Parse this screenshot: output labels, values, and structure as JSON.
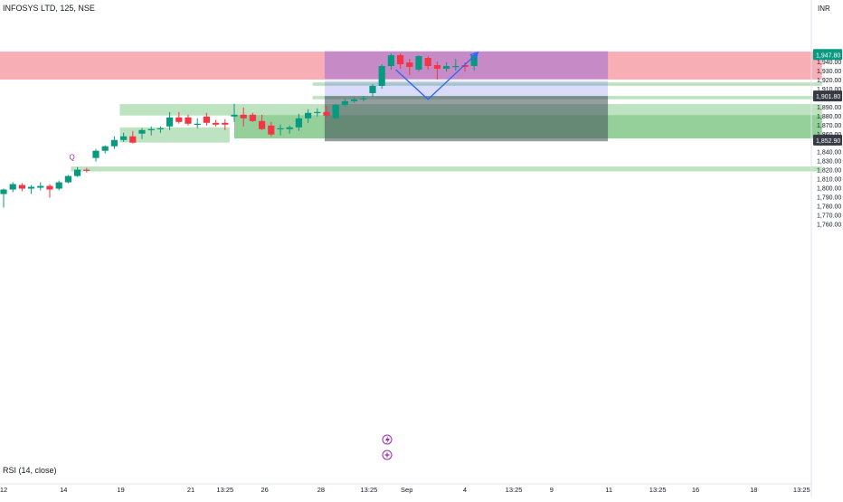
{
  "header": {
    "symbol": "INFOSYS LTD, 125, NSE",
    "currency": "INR"
  },
  "indicator": {
    "label": "RSI (14, close)"
  },
  "colors": {
    "up": "#089981",
    "down": "#f23645",
    "supply": "#f7a5ad",
    "demand": "#b9e1be",
    "demand_dark": "#8fce96",
    "target": "#5a5af0",
    "arrow": "#2962ff"
  },
  "icons": [
    "lightning-icon",
    "plus-circle-icon"
  ],
  "chart_data": {
    "type": "candlestick",
    "title": "INFOSYS LTD, 125, NSE",
    "ylim": [
      1756,
      1973
    ],
    "price_ticks": [
      1760,
      1770,
      1780,
      1790,
      1800,
      1810,
      1820,
      1830,
      1840,
      1850,
      1860,
      1870,
      1880,
      1890,
      1900,
      1910,
      1920,
      1930,
      1940
    ],
    "price_tick_labels": [
      "1,760.00",
      "1,770.00",
      "1,780.00",
      "1,790.00",
      "1,800.00",
      "1,810.00",
      "1,820.00",
      "1,830.00",
      "1,840.00",
      "1,850.00",
      "1,860.00",
      "1,870.00",
      "1,880.00",
      "1,890.00",
      "1,900.00",
      "1,910.00",
      "1,920.00",
      "1,930.00",
      "1,940.00"
    ],
    "x_tick_labels": [
      {
        "label": "12",
        "bar": 0
      },
      {
        "label": "14",
        "bar": 6.5
      },
      {
        "label": "19",
        "bar": 12.7
      },
      {
        "label": "21",
        "bar": 20.3
      },
      {
        "label": "13:25",
        "bar": 24
      },
      {
        "label": "26",
        "bar": 28.3
      },
      {
        "label": "28",
        "bar": 34.4
      },
      {
        "label": "13:25",
        "bar": 39.6
      },
      {
        "label": "Sep",
        "bar": 43.7
      },
      {
        "label": "4",
        "bar": 50
      },
      {
        "label": "13:25",
        "bar": 55.3
      },
      {
        "label": "9",
        "bar": 59.4
      },
      {
        "label": "11",
        "bar": 65.6
      },
      {
        "label": "13:25",
        "bar": 70.9
      },
      {
        "label": "16",
        "bar": 75
      },
      {
        "label": "18",
        "bar": 81.3
      },
      {
        "label": "13:25",
        "bar": 86.5
      }
    ],
    "price_badges": [
      {
        "price": 1947.8,
        "label": "1,947.80",
        "color": "#089981"
      },
      {
        "price": 1901.8,
        "label": "1,901.80",
        "color": "#363a45"
      },
      {
        "price": 1852.9,
        "label": "1,852.90",
        "color": "#363a45"
      }
    ],
    "candles": [
      {
        "o": 1793,
        "h": 1799,
        "l": 1778,
        "c": 1798
      },
      {
        "o": 1798,
        "h": 1806,
        "l": 1795,
        "c": 1804
      },
      {
        "o": 1803,
        "h": 1805,
        "l": 1796,
        "c": 1799
      },
      {
        "o": 1799,
        "h": 1803,
        "l": 1793,
        "c": 1801
      },
      {
        "o": 1800,
        "h": 1806,
        "l": 1797,
        "c": 1802
      },
      {
        "o": 1802,
        "h": 1804,
        "l": 1789,
        "c": 1798
      },
      {
        "o": 1799,
        "h": 1808,
        "l": 1797,
        "c": 1806
      },
      {
        "o": 1806,
        "h": 1814,
        "l": 1805,
        "c": 1813
      },
      {
        "o": 1813,
        "h": 1823,
        "l": 1812,
        "c": 1820
      },
      {
        "o": 1820,
        "h": 1822,
        "l": 1817,
        "c": 1819
      },
      {
        "o": 1833,
        "h": 1843,
        "l": 1829,
        "c": 1841
      },
      {
        "o": 1841,
        "h": 1847,
        "l": 1838,
        "c": 1846
      },
      {
        "o": 1846,
        "h": 1857,
        "l": 1843,
        "c": 1853
      },
      {
        "o": 1853,
        "h": 1861,
        "l": 1851,
        "c": 1857
      },
      {
        "o": 1857,
        "h": 1863,
        "l": 1849,
        "c": 1850
      },
      {
        "o": 1860,
        "h": 1866,
        "l": 1854,
        "c": 1864
      },
      {
        "o": 1864,
        "h": 1868,
        "l": 1858,
        "c": 1865
      },
      {
        "o": 1865,
        "h": 1868,
        "l": 1861,
        "c": 1866
      },
      {
        "o": 1868,
        "h": 1884,
        "l": 1864,
        "c": 1878
      },
      {
        "o": 1878,
        "h": 1884,
        "l": 1871,
        "c": 1873
      },
      {
        "o": 1878,
        "h": 1881,
        "l": 1869,
        "c": 1871
      },
      {
        "o": 1871,
        "h": 1877,
        "l": 1866,
        "c": 1871
      },
      {
        "o": 1879,
        "h": 1883,
        "l": 1869,
        "c": 1872
      },
      {
        "o": 1872,
        "h": 1875,
        "l": 1868,
        "c": 1870
      },
      {
        "o": 1872,
        "h": 1876,
        "l": 1864,
        "c": 1870
      },
      {
        "o": 1879,
        "h": 1893,
        "l": 1873,
        "c": 1881
      },
      {
        "o": 1881,
        "h": 1889,
        "l": 1868,
        "c": 1877
      },
      {
        "o": 1881,
        "h": 1883,
        "l": 1873,
        "c": 1874
      },
      {
        "o": 1874,
        "h": 1881,
        "l": 1864,
        "c": 1865
      },
      {
        "o": 1869,
        "h": 1873,
        "l": 1857,
        "c": 1859
      },
      {
        "o": 1865,
        "h": 1870,
        "l": 1858,
        "c": 1866
      },
      {
        "o": 1865,
        "h": 1869,
        "l": 1860,
        "c": 1867
      },
      {
        "o": 1867,
        "h": 1882,
        "l": 1863,
        "c": 1877
      },
      {
        "o": 1877,
        "h": 1887,
        "l": 1872,
        "c": 1883
      },
      {
        "o": 1883,
        "h": 1888,
        "l": 1879,
        "c": 1884
      },
      {
        "o": 1884,
        "h": 1891,
        "l": 1878,
        "c": 1880
      },
      {
        "o": 1877,
        "h": 1893,
        "l": 1876,
        "c": 1892
      },
      {
        "o": 1892,
        "h": 1899,
        "l": 1890,
        "c": 1896
      },
      {
        "o": 1896,
        "h": 1900,
        "l": 1894,
        "c": 1898
      },
      {
        "o": 1898,
        "h": 1902,
        "l": 1896,
        "c": 1899
      },
      {
        "o": 1905,
        "h": 1915,
        "l": 1901,
        "c": 1913
      },
      {
        "o": 1913,
        "h": 1937,
        "l": 1910,
        "c": 1935
      },
      {
        "o": 1935,
        "h": 1949,
        "l": 1931,
        "c": 1947
      },
      {
        "o": 1947,
        "h": 1949,
        "l": 1932,
        "c": 1937
      },
      {
        "o": 1939,
        "h": 1943,
        "l": 1925,
        "c": 1934
      },
      {
        "o": 1931,
        "h": 1947,
        "l": 1929,
        "c": 1946
      },
      {
        "o": 1944,
        "h": 1946,
        "l": 1931,
        "c": 1935
      },
      {
        "o": 1936,
        "h": 1940,
        "l": 1920,
        "c": 1932
      },
      {
        "o": 1932,
        "h": 1939,
        "l": 1929,
        "c": 1935
      },
      {
        "o": 1934,
        "h": 1943,
        "l": 1930,
        "c": 1935
      },
      {
        "o": 1936,
        "h": 1939,
        "l": 1929,
        "c": 1934
      },
      {
        "o": 1935,
        "h": 1949,
        "l": 1930,
        "c": 1947
      }
    ],
    "zones": [
      {
        "name": "supply",
        "kind": "supply",
        "x0": -3,
        "x1": 88.7,
        "p0": 1919.5,
        "p1": 1951
      },
      {
        "name": "demand-1",
        "kind": "demand",
        "x0": 33.5,
        "x1": 88.7,
        "p0": 1912.5,
        "p1": 1916.8
      },
      {
        "name": "demand-2",
        "kind": "demand",
        "x0": 33.5,
        "x1": 88.7,
        "p0": 1897.5,
        "p1": 1901.8
      },
      {
        "name": "demand-3",
        "kind": "demand",
        "x0": 12.6,
        "x1": 88.7,
        "p0": 1879.5,
        "p1": 1892.8
      },
      {
        "name": "demand-4",
        "kind": "demand_dark",
        "x0": 25,
        "x1": 88.7,
        "p0": 1854,
        "p1": 1880.5
      },
      {
        "name": "demand-5",
        "kind": "demand",
        "x0": 12.6,
        "x1": 24.5,
        "p0": 1849.5,
        "p1": 1867
      },
      {
        "name": "demand-6",
        "kind": "demand",
        "x0": 7.3,
        "x1": 88.7,
        "p0": 1817.5,
        "p1": 1823.5
      }
    ],
    "position": {
      "x0": 34.8,
      "x1": 65.5,
      "top": 1951.5,
      "entry": 1919.5,
      "mid": 1901.8,
      "bottom": 1851.5
    },
    "projection": [
      {
        "bar": 42.5,
        "price": 1931
      },
      {
        "bar": 46,
        "price": 1898
      },
      {
        "bar": 51.4,
        "price": 1950
      }
    ],
    "markers": [
      {
        "bar": 7.4,
        "price": 1831,
        "label": "Q"
      }
    ]
  }
}
